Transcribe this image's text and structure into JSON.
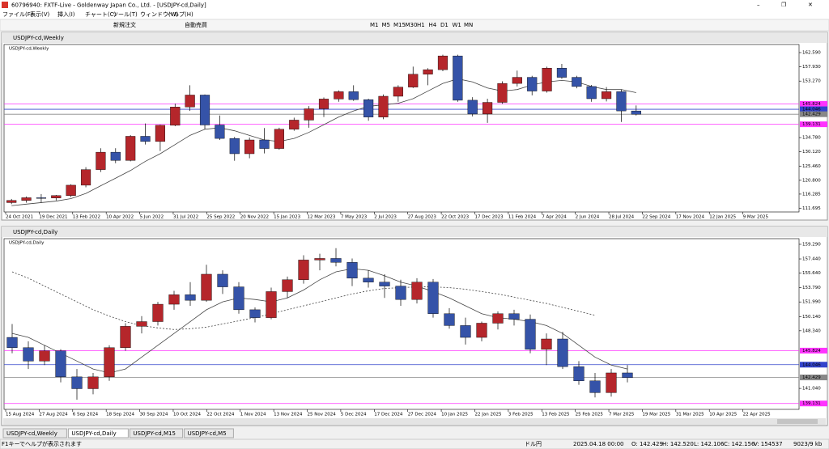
{
  "window_title": "60796940: FXTF-Live - Goldenway Japan Co., Ltd. - [USDJPY-cd,Daily]",
  "menu": [
    "ファイル(F)",
    "表示(V)",
    "挿入(I)",
    "チャート(C)",
    "ツール(T)",
    "ウィンドウ(W)",
    "ヘルプ(H)"
  ],
  "toolbar": {
    "order": "新規注文",
    "auto": "自動売買",
    "timeframes": [
      "M1",
      "M5",
      "M15",
      "M30",
      "H1",
      "H4",
      "D1",
      "W1",
      "MN"
    ]
  },
  "chart_data": [
    {
      "type": "candlestick",
      "window_title": "USDJPY-cd,Weekly",
      "title": "USDJPY-cd,Weekly",
      "up_color": "#b5262b",
      "down_color": "#3553a8",
      "candles": [
        [
          113.5,
          114.7,
          113.0,
          114.2
        ],
        [
          114.2,
          115.5,
          113.5,
          115.1
        ],
        [
          115.1,
          116.3,
          113.5,
          115.0
        ],
        [
          115.0,
          116.0,
          114.2,
          115.8
        ],
        [
          115.8,
          119.5,
          115.3,
          119.2
        ],
        [
          119.2,
          125.1,
          118.5,
          124.3
        ],
        [
          124.3,
          131.3,
          123.5,
          130.0
        ],
        [
          130.0,
          131.3,
          126.4,
          127.3
        ],
        [
          127.3,
          135.6,
          127.0,
          135.2
        ],
        [
          135.2,
          139.4,
          132.5,
          133.5
        ],
        [
          133.5,
          139.0,
          130.4,
          138.8
        ],
        [
          138.8,
          145.9,
          138.5,
          144.8
        ],
        [
          144.8,
          151.9,
          143.5,
          148.7
        ],
        [
          148.7,
          148.9,
          137.5,
          138.9
        ],
        [
          138.9,
          142.0,
          134.0,
          134.5
        ],
        [
          134.5,
          135.0,
          127.2,
          129.5
        ],
        [
          129.5,
          134.8,
          128.0,
          134.0
        ],
        [
          134.0,
          137.9,
          129.6,
          131.2
        ],
        [
          131.2,
          138.0,
          130.8,
          137.5
        ],
        [
          137.5,
          141.3,
          137.0,
          140.5
        ],
        [
          140.5,
          145.1,
          138.0,
          144.2
        ],
        [
          144.2,
          147.9,
          141.5,
          147.4
        ],
        [
          147.4,
          150.2,
          146.5,
          149.8
        ],
        [
          149.8,
          151.9,
          146.8,
          147.2
        ],
        [
          147.2,
          147.5,
          140.3,
          141.5
        ],
        [
          141.5,
          148.9,
          140.8,
          148.3
        ],
        [
          148.3,
          151.9,
          146.5,
          151.3
        ],
        [
          151.3,
          158.0,
          151.0,
          155.5
        ],
        [
          155.5,
          157.5,
          151.9,
          157.0
        ],
        [
          157.0,
          161.9,
          156.5,
          161.5
        ],
        [
          161.5,
          161.9,
          146.5,
          147.0
        ],
        [
          147.0,
          148.0,
          141.7,
          142.5
        ],
        [
          142.5,
          147.5,
          139.6,
          146.3
        ],
        [
          146.3,
          153.2,
          145.8,
          152.5
        ],
        [
          152.5,
          156.7,
          151.5,
          154.5
        ],
        [
          154.5,
          155.0,
          148.6,
          150.0
        ],
        [
          150.0,
          158.0,
          149.5,
          157.5
        ],
        [
          157.5,
          158.9,
          154.0,
          154.5
        ],
        [
          154.5,
          155.0,
          150.9,
          151.5
        ],
        [
          151.5,
          152.0,
          146.5,
          147.5
        ],
        [
          147.5,
          151.3,
          146.6,
          149.8
        ],
        [
          149.8,
          150.5,
          139.9,
          143.5
        ],
        [
          143.5,
          145.3,
          142.0,
          142.4
        ]
      ],
      "series": [
        {
          "color": "#444444",
          "dash": false,
          "values": [
            112.5,
            113,
            113.5,
            114,
            114.8,
            116.5,
            119,
            121.5,
            124,
            127,
            129.5,
            132.5,
            135.5,
            137.5,
            138,
            137,
            135.5,
            134,
            133.5,
            134.5,
            136.5,
            139,
            141.5,
            143.5,
            145,
            145.5,
            146,
            147.5,
            150,
            152.5,
            154,
            153,
            151,
            150,
            150.5,
            152,
            153,
            153.5,
            153,
            151.5,
            150.5,
            150.5,
            149.5
          ]
        }
      ],
      "x_labels": [
        "24 Oct 2021",
        "19 Dec 2021",
        "13 Feb 2022",
        "10 Apr 2022",
        "5 Jun 2022",
        "31 Jul 2022",
        "25 Sep 2022",
        "20 Nov 2022",
        "15 Jan 2023",
        "12 Mar 2023",
        "7 May 2023",
        "2 Jul 2023",
        "27 Aug 2023",
        "22 Oct 2023",
        "17 Dec 2023",
        "11 Feb 2024",
        "7 Apr 2024",
        "2 Jun 2024",
        "28 Jul 2024",
        "22 Sep 2024",
        "17 Nov 2024",
        "12 Jan 2025",
        "9 Mar 2025"
      ],
      "ylim": [
        110.44,
        164.71
      ],
      "yticks": [
        {
          "value": 162.59,
          "label": "162.590"
        },
        {
          "value": 157.93,
          "label": "157.930"
        },
        {
          "value": 153.27,
          "label": "153.270"
        },
        {
          "value": 134.78,
          "label": "134.780"
        },
        {
          "value": 130.12,
          "label": "130.120"
        },
        {
          "value": 125.46,
          "label": "125.460"
        },
        {
          "value": 120.8,
          "label": "120.800"
        },
        {
          "value": 116.285,
          "label": "116.285"
        },
        {
          "value": 111.695,
          "label": "111.695"
        }
      ],
      "hlines": [
        {
          "value": 145.824,
          "label": "145.824",
          "color": "#ff33ff"
        },
        {
          "value": 144.046,
          "label": "144.046",
          "color": "#3344cc"
        },
        {
          "value": 142.429,
          "label": "142.429",
          "color": "#888888"
        },
        {
          "value": 139.131,
          "label": "139.131",
          "color": "#ff33ff"
        }
      ]
    },
    {
      "type": "candlestick",
      "window_title": "USDJPY-cd,Daily",
      "title": "USDJPY-cd,Daily",
      "up_color": "#b5262b",
      "down_color": "#3553a8",
      "candles": [
        [
          147.5,
          149.2,
          145.5,
          146.2
        ],
        [
          146.2,
          147.0,
          143.5,
          144.5
        ],
        [
          144.5,
          146.5,
          144.0,
          145.8
        ],
        [
          145.8,
          146.0,
          141.8,
          142.5
        ],
        [
          142.5,
          143.5,
          139.6,
          141.0
        ],
        [
          141.0,
          143.0,
          140.3,
          142.5
        ],
        [
          142.5,
          146.5,
          142.0,
          146.2
        ],
        [
          146.2,
          149.3,
          145.8,
          148.9
        ],
        [
          148.9,
          150.2,
          148.0,
          149.5
        ],
        [
          149.5,
          152.0,
          149.0,
          151.7
        ],
        [
          151.7,
          153.4,
          151.0,
          152.9
        ],
        [
          152.9,
          154.5,
          151.5,
          152.2
        ],
        [
          152.2,
          156.7,
          152.0,
          155.5
        ],
        [
          155.5,
          156.0,
          153.0,
          153.9
        ],
        [
          153.9,
          154.5,
          150.5,
          151.0
        ],
        [
          151.0,
          151.3,
          149.4,
          150.0
        ],
        [
          150.0,
          153.8,
          149.8,
          153.3
        ],
        [
          153.3,
          155.2,
          152.5,
          154.8
        ],
        [
          154.8,
          157.9,
          154.3,
          157.3
        ],
        [
          157.3,
          158.1,
          156.0,
          157.5
        ],
        [
          157.5,
          158.8,
          156.5,
          157.0
        ],
        [
          157.0,
          157.5,
          154.0,
          155.0
        ],
        [
          155.0,
          156.0,
          153.8,
          154.5
        ],
        [
          154.5,
          155.5,
          152.5,
          154.0
        ],
        [
          154.0,
          154.8,
          151.5,
          152.3
        ],
        [
          152.3,
          155.0,
          151.8,
          154.5
        ],
        [
          154.5,
          154.9,
          150.0,
          150.5
        ],
        [
          150.5,
          151.2,
          148.6,
          149.0
        ],
        [
          149.0,
          150.0,
          146.6,
          147.5
        ],
        [
          147.5,
          149.5,
          147.0,
          149.3
        ],
        [
          149.3,
          150.8,
          148.5,
          150.5
        ],
        [
          150.5,
          151.0,
          149.0,
          149.8
        ],
        [
          149.8,
          150.4,
          145.5,
          146.0
        ],
        [
          146.0,
          148.0,
          144.0,
          147.3
        ],
        [
          147.3,
          148.2,
          143.5,
          143.8
        ],
        [
          143.8,
          144.5,
          141.5,
          142.0
        ],
        [
          142.0,
          143.0,
          139.9,
          140.5
        ],
        [
          140.5,
          143.5,
          140.0,
          143.0
        ],
        [
          143.0,
          144.0,
          141.8,
          142.4
        ]
      ],
      "series": [
        {
          "color": "#444444",
          "dash": false,
          "values": [
            148,
            147.5,
            146.5,
            145.5,
            144.5,
            143.5,
            143,
            143.5,
            145,
            146.5,
            148,
            149.5,
            151,
            152,
            152.5,
            152.3,
            152,
            152.5,
            153.5,
            154.8,
            155.8,
            156.2,
            156,
            155.3,
            154.5,
            154,
            153.3,
            152.5,
            151.5,
            150.5,
            150,
            149.8,
            149.5,
            149,
            148,
            146.5,
            145,
            144,
            143.5
          ]
        },
        {
          "color": "#444444",
          "dash": true,
          "values": [
            155.8,
            155,
            154,
            153,
            152,
            151,
            150.2,
            149.5,
            149,
            148.7,
            148.5,
            148.6,
            148.8,
            149.2,
            149.6,
            150,
            150.5,
            151,
            151.5,
            152,
            152.5,
            153,
            153.4,
            153.7,
            153.8,
            153.9,
            153.9,
            153.8,
            153.6,
            153.3,
            153,
            152.6,
            152.2,
            151.8,
            151.3,
            150.8,
            150.3,
            null,
            null
          ]
        }
      ],
      "x_labels": [
        "15 Aug 2024",
        "27 Aug 2024",
        "6 Sep 2024",
        "18 Sep 2024",
        "30 Sep 2024",
        "10 Oct 2024",
        "22 Oct 2024",
        "1 Nov 2024",
        "13 Nov 2024",
        "25 Nov 2024",
        "5 Dec 2024",
        "17 Dec 2024",
        "27 Dec 2024",
        "10 Jan 2025",
        "22 Jan 2025",
        "3 Feb 2025",
        "13 Feb 2025",
        "25 Feb 2025",
        "7 Mar 2025",
        "19 Mar 2025",
        "31 Mar 2025",
        "10 Apr 2025",
        "22 Apr 2025"
      ],
      "ylim": [
        139.0,
        159.8
      ],
      "yticks": [
        {
          "value": 159.29,
          "label": "159.290"
        },
        {
          "value": 157.44,
          "label": "157.440"
        },
        {
          "value": 155.64,
          "label": "155.640"
        },
        {
          "value": 153.79,
          "label": "153.790"
        },
        {
          "value": 151.99,
          "label": "151.990"
        },
        {
          "value": 150.14,
          "label": "150.140"
        },
        {
          "value": 148.34,
          "label": "148.340"
        },
        {
          "value": 141.04,
          "label": "141.040"
        }
      ],
      "hlines": [
        {
          "value": 145.824,
          "label": "145.824",
          "color": "#ff33ff"
        },
        {
          "value": 144.046,
          "label": "144.046",
          "color": "#3344cc"
        },
        {
          "value": 142.429,
          "label": "142.429",
          "color": "#888888"
        },
        {
          "value": 139.131,
          "label": "139.131",
          "color": "#ff33ff"
        }
      ]
    }
  ],
  "tabs": [
    "USDJPY-cd,Weekly",
    "USDJPY-cd,Daily",
    "USDJPY-cd,M15",
    "USDJPY-cd,M5"
  ],
  "status": {
    "help": "F1キーでヘルプが表示されます",
    "symbol": "ドル円",
    "time": "2025.04.18 00:00",
    "open": "O: 142.429",
    "high": "H: 142.520",
    "low": "L: 142.106",
    "close": "C: 142.156",
    "volume": "V: 154537",
    "traffic": "9023/9 kb"
  }
}
